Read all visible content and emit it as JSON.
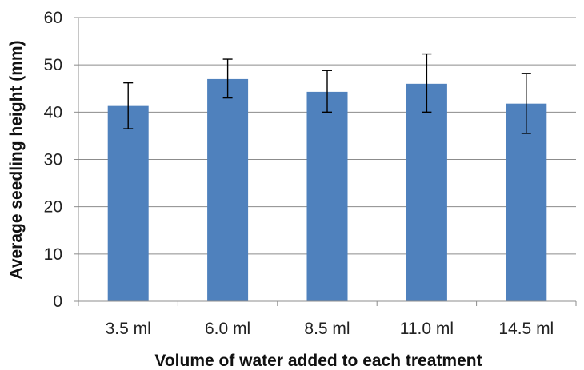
{
  "chart_data": {
    "type": "bar",
    "categories": [
      "3.5 ml",
      "6.0 ml",
      "8.5 ml",
      "11.0 ml",
      "14.5 ml"
    ],
    "values": [
      41.3,
      47.0,
      44.3,
      46.0,
      41.8
    ],
    "error_low": [
      36.5,
      43.0,
      40.0,
      40.0,
      35.5
    ],
    "error_high": [
      46.2,
      51.2,
      48.8,
      52.3,
      48.2
    ],
    "xlabel": "Volume of water added to each treatment",
    "ylabel": "Average seedling height (mm)",
    "ylim": [
      0,
      60
    ],
    "yticks": [
      "0",
      "10",
      "20",
      "30",
      "40",
      "50",
      "60"
    ],
    "grid": true,
    "bar_color": "#4f81bd",
    "gridline_color": "#8c8c8c",
    "error_bar_color": "#000000"
  }
}
